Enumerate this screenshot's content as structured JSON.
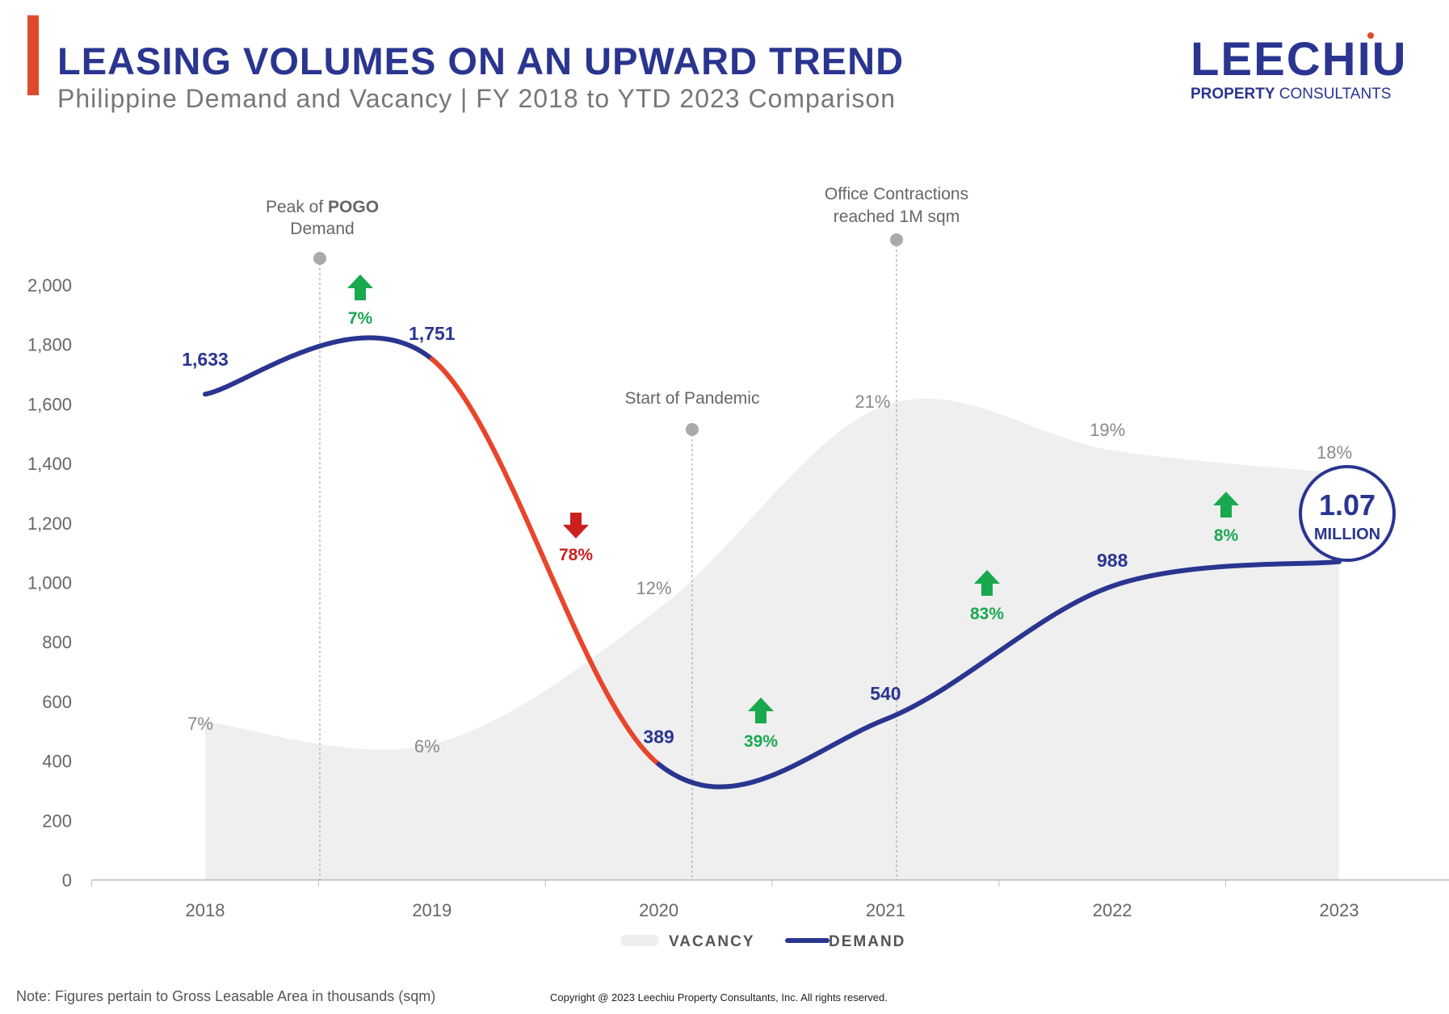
{
  "header": {
    "title": "LEASING VOLUMES ON AN UPWARD TREND",
    "subtitle": "Philippine Demand and Vacancy | FY 2018 to YTD 2023 Comparison"
  },
  "logo": {
    "name": "LEECHIU",
    "sub_bold": "PROPERTY",
    "sub_rest": " CONSULTANTS"
  },
  "chart_data": {
    "type": "line",
    "categories": [
      "2018",
      "2019",
      "2020",
      "2021",
      "2022",
      "2023"
    ],
    "ylim": [
      0,
      2000
    ],
    "yticks": [
      0,
      200,
      400,
      600,
      800,
      1000,
      1200,
      1400,
      1600,
      1800,
      2000
    ],
    "ytick_labels": [
      "0",
      "200",
      "400",
      "600",
      "800",
      "1,000",
      "1,200",
      "1,400",
      "1,600",
      "1,800",
      "2,000"
    ],
    "series": [
      {
        "name": "DEMAND",
        "type": "line",
        "values": [
          1633,
          1751,
          389,
          540,
          988,
          1070
        ],
        "labels": [
          "1,633",
          "1,751",
          "389",
          "540",
          "988",
          ""
        ],
        "color": "#2a3590",
        "decline_color": "#e8452a"
      },
      {
        "name": "VACANCY",
        "type": "area",
        "unit": "%",
        "values": [
          7,
          6,
          12,
          21,
          19,
          18
        ],
        "labels": [
          "7%",
          "6%",
          "12%",
          "21%",
          "19%",
          "18%"
        ],
        "color": "#efefef"
      }
    ],
    "growth": [
      {
        "between": [
          "2018",
          "2019"
        ],
        "label": "7%",
        "direction": "up"
      },
      {
        "between": [
          "2019",
          "2020"
        ],
        "label": "78%",
        "direction": "down"
      },
      {
        "between": [
          "2020",
          "2021"
        ],
        "label": "39%",
        "direction": "up"
      },
      {
        "between": [
          "2021",
          "2022"
        ],
        "label": "83%",
        "direction": "up"
      },
      {
        "between": [
          "2022",
          "2023"
        ],
        "label": "8%",
        "direction": "up"
      }
    ],
    "annotations": [
      {
        "text_lines": [
          "Peak of ",
          "POGO",
          "Demand"
        ],
        "at": "2018.6"
      },
      {
        "text_lines": [
          "Start of Pandemic"
        ],
        "at": "2020.15"
      },
      {
        "text_lines": [
          "Office Contractions",
          "reached 1M sqm"
        ],
        "at": "2021.05"
      }
    ],
    "callout": {
      "value": "1.07",
      "unit": "MILLION"
    },
    "legend": [
      "VACANCY",
      "DEMAND"
    ],
    "colors": {
      "up": "#1aa84f",
      "down": "#cc1f1f",
      "navy": "#2a3590"
    }
  },
  "footer": {
    "note": "Note: Figures pertain to Gross Leasable Area in thousands (sqm)",
    "copyright": "Copyright @ 2023 Leechiu Property Consultants, Inc. All rights reserved."
  }
}
